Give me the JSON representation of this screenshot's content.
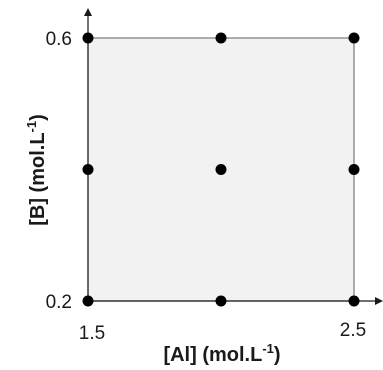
{
  "chart_data": {
    "type": "scatter",
    "xlabel": "[Al] (mol.L",
    "xlabel_sup": "-1",
    "xlabel_end": ")",
    "ylabel": "[B] (mol.L",
    "ylabel_sup": "-1",
    "ylabel_end": ")",
    "xlim": [
      1.5,
      2.5
    ],
    "ylim": [
      0.2,
      0.6
    ],
    "x_ticks": [
      "1.5",
      "2.5"
    ],
    "y_ticks": [
      "0.6",
      "0.2"
    ],
    "grid": false,
    "region_fill": "#f2f2f2",
    "point_color": "#000000",
    "points": [
      {
        "x": 1.5,
        "y": 0.6
      },
      {
        "x": 2.0,
        "y": 0.6
      },
      {
        "x": 2.5,
        "y": 0.6
      },
      {
        "x": 1.5,
        "y": 0.4
      },
      {
        "x": 2.0,
        "y": 0.4
      },
      {
        "x": 2.5,
        "y": 0.4
      },
      {
        "x": 1.5,
        "y": 0.2
      },
      {
        "x": 2.0,
        "y": 0.2
      },
      {
        "x": 2.5,
        "y": 0.2
      }
    ]
  }
}
